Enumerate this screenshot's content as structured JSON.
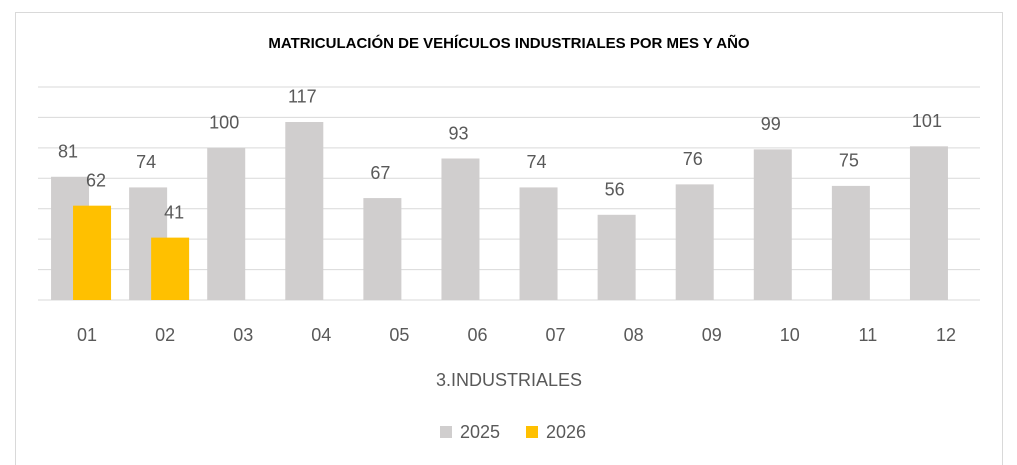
{
  "chart_data": {
    "type": "bar",
    "title": "MATRICULACIÓN DE VEHÍCULOS INDUSTRIALES POR MES Y AÑO",
    "x_label": "3.INDUSTRIALES",
    "categories": [
      "01",
      "02",
      "03",
      "04",
      "05",
      "06",
      "07",
      "08",
      "09",
      "10",
      "11",
      "12"
    ],
    "series": [
      {
        "name": "2025",
        "color": "#d0cece",
        "values": [
          81,
          74,
          100,
          117,
          67,
          93,
          74,
          56,
          76,
          99,
          75,
          101
        ]
      },
      {
        "name": "2026",
        "color": "#ffc000",
        "values": [
          62,
          41,
          null,
          null,
          null,
          null,
          null,
          null,
          null,
          null,
          null,
          null
        ]
      }
    ],
    "ylim": [
      0,
      140
    ],
    "yticks": [
      0,
      20,
      40,
      60,
      80,
      100,
      120,
      140
    ],
    "grid": true,
    "legend": "bottom"
  }
}
